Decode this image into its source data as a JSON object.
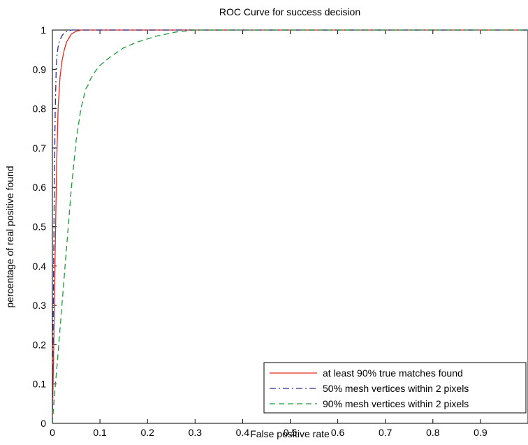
{
  "chart_data": {
    "type": "line",
    "title": "ROC Curve for success decision",
    "xlabel": "False positive rate",
    "ylabel": "percentage of real positive found",
    "xlim": [
      0,
      1
    ],
    "ylim": [
      0,
      1
    ],
    "xticks": [
      0,
      0.1,
      0.2,
      0.3,
      0.4,
      0.5,
      0.6,
      0.7,
      0.8,
      0.9
    ],
    "xtick_labels": [
      "0",
      "0.1",
      "0.2",
      "0.3",
      "0.4",
      "0.5",
      "0.6",
      "0.7",
      "0.8",
      "0.9"
    ],
    "yticks": [
      0,
      0.1,
      0.2,
      0.3,
      0.4,
      0.5,
      0.6,
      0.7,
      0.8,
      0.9,
      1
    ],
    "ytick_labels": [
      "0",
      "0.1",
      "0.2",
      "0.3",
      "0.4",
      "0.5",
      "0.6",
      "0.7",
      "0.8",
      "0.9",
      "1"
    ],
    "grid": false,
    "legend_position": "bottom-right",
    "series": [
      {
        "name": "at least 90% true matches found",
        "color": "#e8281e",
        "style": "solid",
        "x": [
          0,
          0.003,
          0.006,
          0.009,
          0.012,
          0.016,
          0.02,
          0.025,
          0.03,
          0.035,
          0.04,
          0.05,
          0.06,
          0.08,
          0.1,
          0.2,
          0.4,
          0.6,
          0.8,
          1.0
        ],
        "y": [
          0,
          0.2,
          0.45,
          0.66,
          0.8,
          0.88,
          0.92,
          0.95,
          0.97,
          0.98,
          0.99,
          0.997,
          1.0,
          1.0,
          1.0,
          1.0,
          1.0,
          1.0,
          1.0,
          1.0
        ]
      },
      {
        "name": "50% mesh vertices within 2 pixels",
        "color": "#2b2e8c",
        "style": "dashdot",
        "x": [
          0,
          0.002,
          0.004,
          0.006,
          0.008,
          0.01,
          0.013,
          0.016,
          0.02,
          0.025,
          0.03,
          0.04,
          0.05,
          0.1,
          0.3,
          0.6,
          1.0
        ],
        "y": [
          0,
          0.3,
          0.6,
          0.8,
          0.9,
          0.94,
          0.965,
          0.975,
          0.985,
          0.993,
          0.997,
          1.0,
          1.0,
          1.0,
          1.0,
          1.0,
          1.0
        ]
      },
      {
        "name": "90% mesh vertices within 2 pixels",
        "color": "#1f9a3a",
        "style": "dashed",
        "x": [
          0,
          0.005,
          0.01,
          0.02,
          0.03,
          0.04,
          0.05,
          0.06,
          0.07,
          0.075,
          0.08,
          0.09,
          0.1,
          0.12,
          0.15,
          0.18,
          0.22,
          0.26,
          0.3,
          0.4,
          0.6,
          1.0
        ],
        "y": [
          0,
          0.08,
          0.15,
          0.3,
          0.45,
          0.6,
          0.72,
          0.8,
          0.85,
          0.86,
          0.875,
          0.895,
          0.91,
          0.93,
          0.955,
          0.97,
          0.985,
          0.995,
          1.0,
          1.0,
          1.0,
          1.0
        ]
      }
    ]
  }
}
